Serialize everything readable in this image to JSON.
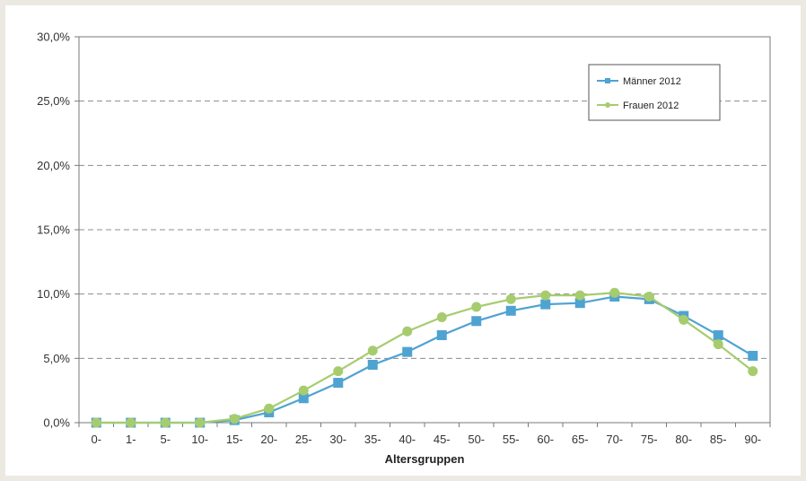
{
  "chart_data": {
    "type": "line",
    "title": "",
    "xlabel": "Altersgruppen",
    "ylabel": "",
    "categories": [
      "0-",
      "1-",
      "5-",
      "10-",
      "15-",
      "20-",
      "25-",
      "30-",
      "35-",
      "40-",
      "45-",
      "50-",
      "55-",
      "60-",
      "65-",
      "70-",
      "75-",
      "80-",
      "85-",
      "90-"
    ],
    "ylim": [
      0,
      30
    ],
    "yticks": [
      0,
      5,
      10,
      15,
      20,
      25,
      30
    ],
    "ytick_labels": [
      "0,0%",
      "5,0%",
      "10,0%",
      "15,0%",
      "20,0%",
      "25,0%",
      "30,0%"
    ],
    "grid": "horizontal dashed",
    "legend_position": "top-right",
    "series": [
      {
        "name": "Männer 2012",
        "marker": "square",
        "color": "#4fa3d1",
        "values": [
          0.0,
          0.0,
          0.0,
          0.0,
          0.2,
          0.8,
          1.9,
          3.1,
          4.5,
          5.5,
          6.8,
          7.9,
          8.7,
          9.2,
          9.3,
          9.8,
          9.6,
          8.3,
          6.8,
          5.2
        ]
      },
      {
        "name": "Frauen 2012",
        "marker": "circle",
        "color": "#a6cc6e",
        "values": [
          0.0,
          0.0,
          0.0,
          0.0,
          0.3,
          1.1,
          2.5,
          4.0,
          5.6,
          7.1,
          8.2,
          9.0,
          9.6,
          9.9,
          9.9,
          10.1,
          9.8,
          8.0,
          6.1,
          4.0
        ]
      }
    ]
  }
}
